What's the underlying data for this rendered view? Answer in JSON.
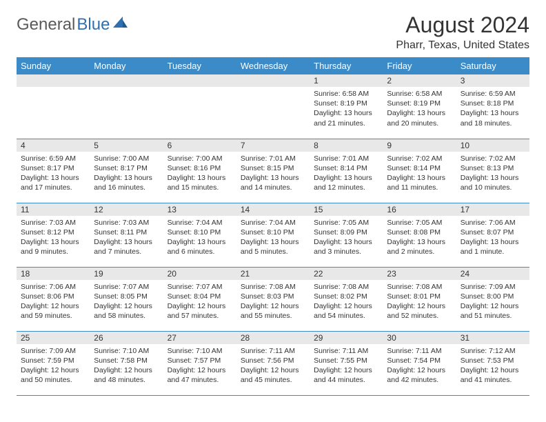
{
  "logo": {
    "part1": "General",
    "part2": "Blue"
  },
  "title": "August 2024",
  "location": "Pharr, Texas, United States",
  "colors": {
    "header_bg": "#3b8bc9",
    "header_text": "#ffffff",
    "daynum_bg": "#e8e8e8",
    "border": "#3b8bc9",
    "logo_gray": "#5a5a5a",
    "logo_blue": "#2f6fb0",
    "text": "#333333"
  },
  "day_names": [
    "Sunday",
    "Monday",
    "Tuesday",
    "Wednesday",
    "Thursday",
    "Friday",
    "Saturday"
  ],
  "weeks": [
    [
      {
        "n": "",
        "sr": "",
        "ss": "",
        "dl": ""
      },
      {
        "n": "",
        "sr": "",
        "ss": "",
        "dl": ""
      },
      {
        "n": "",
        "sr": "",
        "ss": "",
        "dl": ""
      },
      {
        "n": "",
        "sr": "",
        "ss": "",
        "dl": ""
      },
      {
        "n": "1",
        "sr": "Sunrise: 6:58 AM",
        "ss": "Sunset: 8:19 PM",
        "dl": "Daylight: 13 hours and 21 minutes."
      },
      {
        "n": "2",
        "sr": "Sunrise: 6:58 AM",
        "ss": "Sunset: 8:19 PM",
        "dl": "Daylight: 13 hours and 20 minutes."
      },
      {
        "n": "3",
        "sr": "Sunrise: 6:59 AM",
        "ss": "Sunset: 8:18 PM",
        "dl": "Daylight: 13 hours and 18 minutes."
      }
    ],
    [
      {
        "n": "4",
        "sr": "Sunrise: 6:59 AM",
        "ss": "Sunset: 8:17 PM",
        "dl": "Daylight: 13 hours and 17 minutes."
      },
      {
        "n": "5",
        "sr": "Sunrise: 7:00 AM",
        "ss": "Sunset: 8:17 PM",
        "dl": "Daylight: 13 hours and 16 minutes."
      },
      {
        "n": "6",
        "sr": "Sunrise: 7:00 AM",
        "ss": "Sunset: 8:16 PM",
        "dl": "Daylight: 13 hours and 15 minutes."
      },
      {
        "n": "7",
        "sr": "Sunrise: 7:01 AM",
        "ss": "Sunset: 8:15 PM",
        "dl": "Daylight: 13 hours and 14 minutes."
      },
      {
        "n": "8",
        "sr": "Sunrise: 7:01 AM",
        "ss": "Sunset: 8:14 PM",
        "dl": "Daylight: 13 hours and 12 minutes."
      },
      {
        "n": "9",
        "sr": "Sunrise: 7:02 AM",
        "ss": "Sunset: 8:14 PM",
        "dl": "Daylight: 13 hours and 11 minutes."
      },
      {
        "n": "10",
        "sr": "Sunrise: 7:02 AM",
        "ss": "Sunset: 8:13 PM",
        "dl": "Daylight: 13 hours and 10 minutes."
      }
    ],
    [
      {
        "n": "11",
        "sr": "Sunrise: 7:03 AM",
        "ss": "Sunset: 8:12 PM",
        "dl": "Daylight: 13 hours and 9 minutes."
      },
      {
        "n": "12",
        "sr": "Sunrise: 7:03 AM",
        "ss": "Sunset: 8:11 PM",
        "dl": "Daylight: 13 hours and 7 minutes."
      },
      {
        "n": "13",
        "sr": "Sunrise: 7:04 AM",
        "ss": "Sunset: 8:10 PM",
        "dl": "Daylight: 13 hours and 6 minutes."
      },
      {
        "n": "14",
        "sr": "Sunrise: 7:04 AM",
        "ss": "Sunset: 8:10 PM",
        "dl": "Daylight: 13 hours and 5 minutes."
      },
      {
        "n": "15",
        "sr": "Sunrise: 7:05 AM",
        "ss": "Sunset: 8:09 PM",
        "dl": "Daylight: 13 hours and 3 minutes."
      },
      {
        "n": "16",
        "sr": "Sunrise: 7:05 AM",
        "ss": "Sunset: 8:08 PM",
        "dl": "Daylight: 13 hours and 2 minutes."
      },
      {
        "n": "17",
        "sr": "Sunrise: 7:06 AM",
        "ss": "Sunset: 8:07 PM",
        "dl": "Daylight: 13 hours and 1 minute."
      }
    ],
    [
      {
        "n": "18",
        "sr": "Sunrise: 7:06 AM",
        "ss": "Sunset: 8:06 PM",
        "dl": "Daylight: 12 hours and 59 minutes."
      },
      {
        "n": "19",
        "sr": "Sunrise: 7:07 AM",
        "ss": "Sunset: 8:05 PM",
        "dl": "Daylight: 12 hours and 58 minutes."
      },
      {
        "n": "20",
        "sr": "Sunrise: 7:07 AM",
        "ss": "Sunset: 8:04 PM",
        "dl": "Daylight: 12 hours and 57 minutes."
      },
      {
        "n": "21",
        "sr": "Sunrise: 7:08 AM",
        "ss": "Sunset: 8:03 PM",
        "dl": "Daylight: 12 hours and 55 minutes."
      },
      {
        "n": "22",
        "sr": "Sunrise: 7:08 AM",
        "ss": "Sunset: 8:02 PM",
        "dl": "Daylight: 12 hours and 54 minutes."
      },
      {
        "n": "23",
        "sr": "Sunrise: 7:08 AM",
        "ss": "Sunset: 8:01 PM",
        "dl": "Daylight: 12 hours and 52 minutes."
      },
      {
        "n": "24",
        "sr": "Sunrise: 7:09 AM",
        "ss": "Sunset: 8:00 PM",
        "dl": "Daylight: 12 hours and 51 minutes."
      }
    ],
    [
      {
        "n": "25",
        "sr": "Sunrise: 7:09 AM",
        "ss": "Sunset: 7:59 PM",
        "dl": "Daylight: 12 hours and 50 minutes."
      },
      {
        "n": "26",
        "sr": "Sunrise: 7:10 AM",
        "ss": "Sunset: 7:58 PM",
        "dl": "Daylight: 12 hours and 48 minutes."
      },
      {
        "n": "27",
        "sr": "Sunrise: 7:10 AM",
        "ss": "Sunset: 7:57 PM",
        "dl": "Daylight: 12 hours and 47 minutes."
      },
      {
        "n": "28",
        "sr": "Sunrise: 7:11 AM",
        "ss": "Sunset: 7:56 PM",
        "dl": "Daylight: 12 hours and 45 minutes."
      },
      {
        "n": "29",
        "sr": "Sunrise: 7:11 AM",
        "ss": "Sunset: 7:55 PM",
        "dl": "Daylight: 12 hours and 44 minutes."
      },
      {
        "n": "30",
        "sr": "Sunrise: 7:11 AM",
        "ss": "Sunset: 7:54 PM",
        "dl": "Daylight: 12 hours and 42 minutes."
      },
      {
        "n": "31",
        "sr": "Sunrise: 7:12 AM",
        "ss": "Sunset: 7:53 PM",
        "dl": "Daylight: 12 hours and 41 minutes."
      }
    ]
  ]
}
